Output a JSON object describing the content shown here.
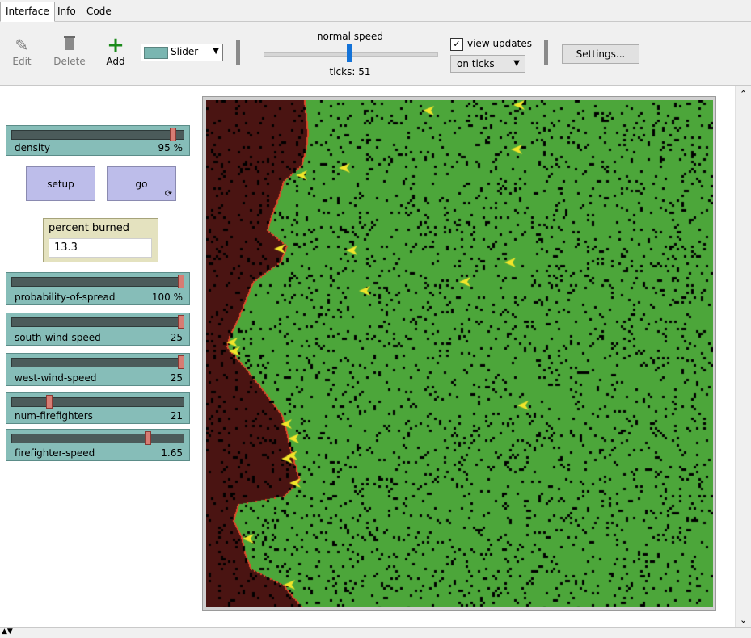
{
  "tabs": [
    "Interface",
    "Info",
    "Code"
  ],
  "toolbar": {
    "edit_label": "Edit",
    "delete_label": "Delete",
    "add_label": "Add",
    "widget_type": "Slider",
    "speed_label": "normal speed",
    "ticks_label": "ticks: 51",
    "view_updates_label": "view updates",
    "view_updates_checked": true,
    "update_mode": "on ticks",
    "settings_label": "Settings..."
  },
  "widgets": {
    "density": {
      "name": "density",
      "value": "95 %",
      "fraction": 0.95
    },
    "setup_label": "setup",
    "go_label": "go",
    "monitor": {
      "label": "percent burned",
      "value": "13.3"
    },
    "probability": {
      "name": "probability-of-spread",
      "value": "100 %",
      "fraction": 1.0
    },
    "south_wind": {
      "name": "south-wind-speed",
      "value": "25",
      "fraction": 1.0
    },
    "west_wind": {
      "name": "west-wind-speed",
      "value": "25",
      "fraction": 1.0
    },
    "num_firefighters": {
      "name": "num-firefighters",
      "value": "21",
      "fraction": 0.21
    },
    "firefighter_speed": {
      "name": "firefighter-speed",
      "value": "1.65",
      "fraction": 0.8
    }
  },
  "world_colors": {
    "tree": "#4ca63a",
    "burnt": "#4a1412",
    "empty": "#000000",
    "fire_front": "#e04a2a",
    "firefighter": "#f2e52a"
  }
}
